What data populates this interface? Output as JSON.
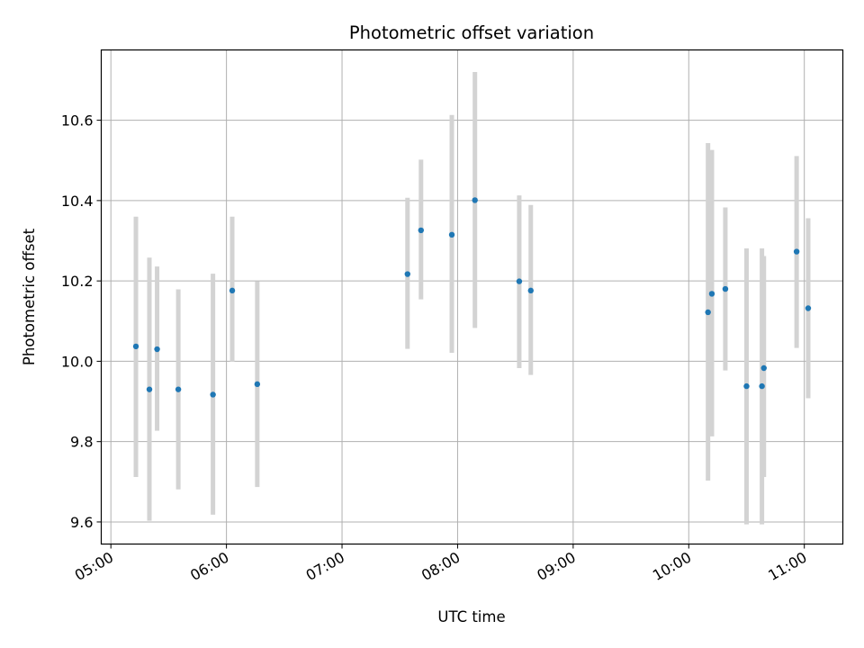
{
  "chart_data": {
    "type": "scatter",
    "title": "Photometric offset variation",
    "xlabel": "UTC time",
    "ylabel": "Photometric offset",
    "x_range": [
      "04:55",
      "11:20"
    ],
    "ylim": [
      9.545,
      10.775
    ],
    "grid": true,
    "marker_color": "#1f77b4",
    "errorbar_color": "#d3d3d3",
    "x_ticks": [
      "05:00",
      "06:00",
      "07:00",
      "08:00",
      "09:00",
      "10:00",
      "11:00"
    ],
    "y_ticks": [
      "9.6",
      "9.8",
      "10.0",
      "10.2",
      "10.4",
      "10.6"
    ],
    "points": [
      {
        "x": "05:13",
        "y": 10.037,
        "ylow": 9.712,
        "yhigh": 10.36
      },
      {
        "x": "05:20",
        "y": 9.93,
        "ylow": 9.603,
        "yhigh": 10.258
      },
      {
        "x": "05:24",
        "y": 10.03,
        "ylow": 9.827,
        "yhigh": 10.236
      },
      {
        "x": "05:35",
        "y": 9.93,
        "ylow": 9.681,
        "yhigh": 10.179
      },
      {
        "x": "05:53",
        "y": 9.917,
        "ylow": 9.618,
        "yhigh": 10.218
      },
      {
        "x": "06:03",
        "y": 10.176,
        "ylow": 9.999,
        "yhigh": 10.36
      },
      {
        "x": "06:16",
        "y": 9.943,
        "ylow": 9.687,
        "yhigh": 10.199
      },
      {
        "x": "07:34",
        "y": 10.217,
        "ylow": 10.031,
        "yhigh": 10.407
      },
      {
        "x": "07:41",
        "y": 10.326,
        "ylow": 10.154,
        "yhigh": 10.502
      },
      {
        "x": "07:57",
        "y": 10.315,
        "ylow": 10.021,
        "yhigh": 10.613
      },
      {
        "x": "08:09",
        "y": 10.401,
        "ylow": 10.083,
        "yhigh": 10.72
      },
      {
        "x": "08:32",
        "y": 10.199,
        "ylow": 9.983,
        "yhigh": 10.413
      },
      {
        "x": "08:38",
        "y": 10.176,
        "ylow": 9.966,
        "yhigh": 10.389
      },
      {
        "x": "10:10",
        "y": 10.122,
        "ylow": 9.703,
        "yhigh": 10.543
      },
      {
        "x": "10:12",
        "y": 10.168,
        "ylow": 9.813,
        "yhigh": 10.526
      },
      {
        "x": "10:19",
        "y": 10.18,
        "ylow": 9.977,
        "yhigh": 10.383
      },
      {
        "x": "10:30",
        "y": 9.938,
        "ylow": 9.594,
        "yhigh": 10.281
      },
      {
        "x": "10:38",
        "y": 9.938,
        "ylow": 9.594,
        "yhigh": 10.281
      },
      {
        "x": "10:39",
        "y": 9.983,
        "ylow": 9.712,
        "yhigh": 10.262
      },
      {
        "x": "10:56",
        "y": 10.273,
        "ylow": 10.033,
        "yhigh": 10.511
      },
      {
        "x": "11:02",
        "y": 10.132,
        "ylow": 9.908,
        "yhigh": 10.356
      }
    ]
  }
}
